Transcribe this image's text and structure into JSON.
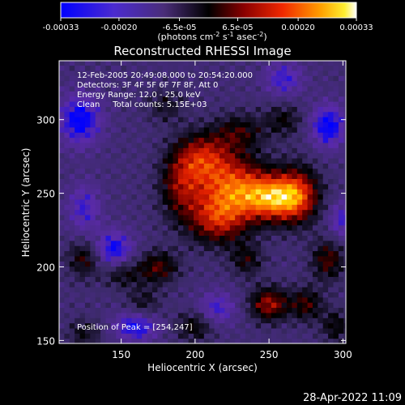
{
  "colorbar": {
    "tick_labels": [
      "-0.00033",
      "-0.00020",
      "-6.5e-05",
      "6.5e-05",
      "0.00020",
      "0.00033"
    ],
    "tick_values": [
      -0.00033,
      -0.0002,
      -6.5e-05,
      6.5e-05,
      0.0002,
      0.00033
    ],
    "range": [
      -0.00033,
      0.00033
    ],
    "unit_label": "(photons cm",
    "unit_exp1": "-2",
    "unit_mid": " s",
    "unit_exp2": "-1",
    "unit_mid2": " asec",
    "unit_exp3": "-2",
    "unit_end": ")"
  },
  "chart_data": {
    "type": "heatmap",
    "title": "Reconstructed RHESSI Image",
    "xlabel": "Heliocentric X (arcsec)",
    "ylabel": "Heliocentric Y (arcsec)",
    "xlim": [
      108,
      302
    ],
    "ylim": [
      148,
      340
    ],
    "x_ticks": [
      150,
      200,
      250,
      300
    ],
    "y_ticks": [
      150,
      200,
      250,
      300
    ],
    "x_tick_labels": [
      "150",
      "200",
      "250",
      "300"
    ],
    "y_tick_labels": [
      "150",
      "200",
      "250",
      "300"
    ],
    "peak": [
      254,
      247
    ],
    "annotations": [
      "12-Feb-2005 20:49:08.000 to 20:54:20.000",
      "Detectors: 3F 4F 5F 6F 7F 8F, Att 0",
      "Energy Range: 12.0 - 25.0 keV",
      "Clean     Total counts: 5.15E+03"
    ],
    "peak_label": "Position of Peak = [254,247]",
    "colormap": [
      "#0000ff",
      "#5a2aa8",
      "#3a2a66",
      "#000000",
      "#7a0000",
      "#e02000",
      "#ff8000",
      "#ffe000",
      "#ffffff"
    ],
    "sources": [
      {
        "x": 254,
        "y": 247,
        "amp": 0.00033,
        "sx": 15,
        "sy": 11
      },
      {
        "x": 225,
        "y": 255,
        "amp": 0.00027,
        "sx": 17,
        "sy": 15
      },
      {
        "x": 205,
        "y": 275,
        "amp": 0.00021,
        "sx": 13,
        "sy": 12
      },
      {
        "x": 215,
        "y": 232,
        "amp": 0.00022,
        "sx": 14,
        "sy": 12
      },
      {
        "x": 190,
        "y": 255,
        "amp": 0.00017,
        "sx": 10,
        "sy": 16
      },
      {
        "x": 270,
        "y": 250,
        "amp": 0.00018,
        "sx": 10,
        "sy": 14
      },
      {
        "x": 230,
        "y": 292,
        "amp": 0.00013,
        "sx": 12,
        "sy": 9
      },
      {
        "x": 250,
        "y": 175,
        "amp": 0.00022,
        "sx": 9,
        "sy": 8
      },
      {
        "x": 275,
        "y": 175,
        "amp": 0.00015,
        "sx": 8,
        "sy": 8
      },
      {
        "x": 290,
        "y": 205,
        "amp": 0.00016,
        "sx": 8,
        "sy": 10
      },
      {
        "x": 175,
        "y": 200,
        "amp": 0.00016,
        "sx": 10,
        "sy": 8
      },
      {
        "x": 150,
        "y": 196,
        "amp": 0.00012,
        "sx": 9,
        "sy": 7
      },
      {
        "x": 125,
        "y": 206,
        "amp": 0.00014,
        "sx": 8,
        "sy": 9
      },
      {
        "x": 200,
        "y": 160,
        "amp": 0.00013,
        "sx": 9,
        "sy": 7
      },
      {
        "x": 235,
        "y": 205,
        "amp": 0.00012,
        "sx": 8,
        "sy": 8
      },
      {
        "x": 260,
        "y": 300,
        "amp": 0.00011,
        "sx": 9,
        "sy": 8
      },
      {
        "x": 165,
        "y": 175,
        "amp": 0.0001,
        "sx": 8,
        "sy": 8
      },
      {
        "x": 125,
        "y": 155,
        "amp": 0.0001,
        "sx": 8,
        "sy": 7
      },
      {
        "x": 295,
        "y": 160,
        "amp": 0.00012,
        "sx": 7,
        "sy": 8
      },
      {
        "x": 180,
        "y": 310,
        "amp": 9e-05,
        "sx": 9,
        "sy": 8
      }
    ],
    "negatives": [
      {
        "x": 122,
        "y": 300,
        "amp": -0.00022,
        "sx": 10,
        "sy": 12
      },
      {
        "x": 145,
        "y": 212,
        "amp": -0.0002,
        "sx": 9,
        "sy": 9
      },
      {
        "x": 290,
        "y": 296,
        "amp": -0.00022,
        "sx": 8,
        "sy": 10
      },
      {
        "x": 160,
        "y": 160,
        "amp": -0.0002,
        "sx": 10,
        "sy": 7
      },
      {
        "x": 125,
        "y": 240,
        "amp": -0.00014,
        "sx": 8,
        "sy": 12
      },
      {
        "x": 215,
        "y": 172,
        "amp": -0.00014,
        "sx": 9,
        "sy": 8
      },
      {
        "x": 300,
        "y": 232,
        "amp": -0.00014,
        "sx": 7,
        "sy": 9
      },
      {
        "x": 260,
        "y": 328,
        "amp": -0.00015,
        "sx": 9,
        "sy": 8
      }
    ]
  },
  "timestamp": "28-Apr-2022 11:09"
}
